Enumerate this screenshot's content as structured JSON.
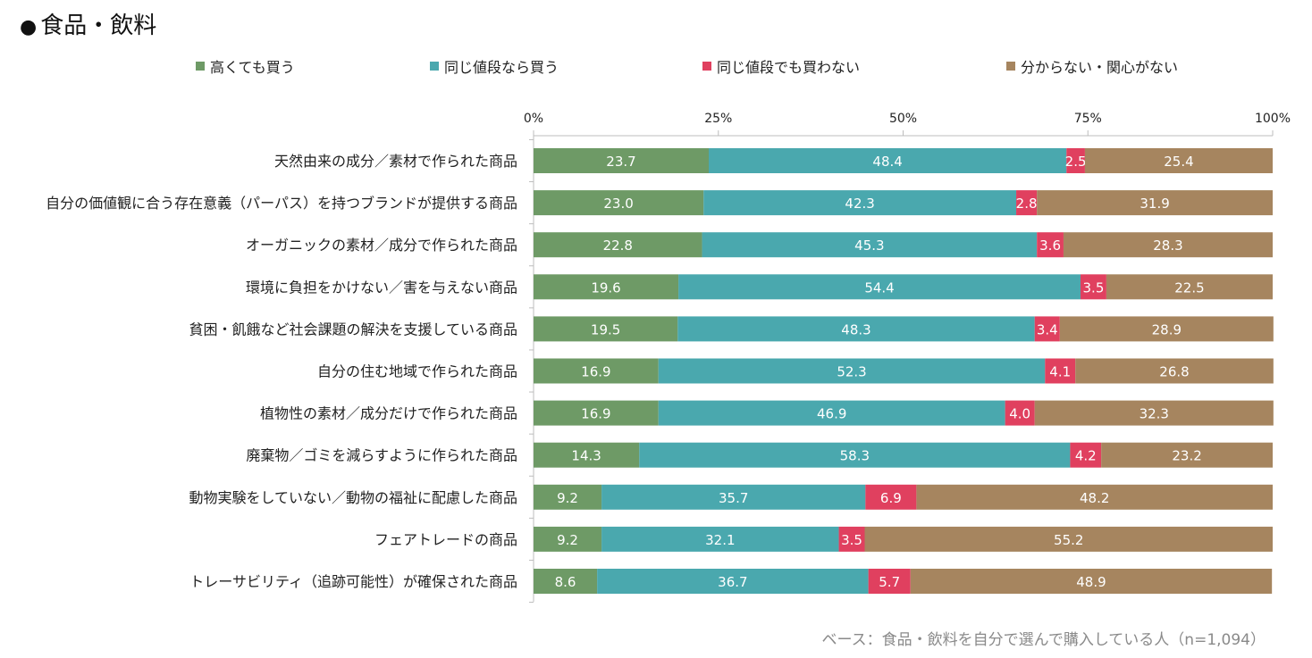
{
  "title": "食品・飲料",
  "bullet": "●",
  "footer": "ベース：食品・飲料を自分で選んで購入している人（n=1,094）",
  "colors": {
    "s1": "#6e9a66",
    "s2": "#4aa8ae",
    "s3": "#e0405f",
    "s4": "#a6855f",
    "axis": "#bdbdbd",
    "label_light": "#ffffff"
  },
  "chart_data": {
    "type": "bar",
    "orientation": "horizontal",
    "stacked": true,
    "xlim": [
      0,
      100
    ],
    "xticks": [
      "0%",
      "25%",
      "50%",
      "75%",
      "100%"
    ],
    "xtick_values": [
      0,
      25,
      50,
      75,
      100
    ],
    "legend_position": "top",
    "categories": [
      "天然由来の成分／素材で作られた商品",
      "自分の価値観に合う存在意義（パーパス）を持つブランドが提供する商品",
      "オーガニックの素材／成分で作られた商品",
      "環境に負担をかけない／害を与えない商品",
      "貧困・飢餓など社会課題の解決を支援している商品",
      "自分の住む地域で作られた商品",
      "植物性の素材／成分だけで作られた商品",
      "廃棄物／ゴミを減らすように作られた商品",
      "動物実験をしていない／動物の福祉に配慮した商品",
      "フェアトレードの商品",
      "トレーサビリティ（追跡可能性）が確保された商品"
    ],
    "series": [
      {
        "name": "高くても買う",
        "values": [
          23.7,
          23.0,
          22.8,
          19.6,
          19.5,
          16.9,
          16.9,
          14.3,
          9.2,
          9.2,
          8.6
        ]
      },
      {
        "name": "同じ値段なら買う",
        "values": [
          48.4,
          42.3,
          45.3,
          54.4,
          48.3,
          52.3,
          46.9,
          58.3,
          35.7,
          32.1,
          36.7
        ]
      },
      {
        "name": "同じ値段でも買わない",
        "values": [
          2.5,
          2.8,
          3.6,
          3.5,
          3.4,
          4.1,
          4.0,
          4.2,
          6.9,
          3.5,
          5.7
        ]
      },
      {
        "name": "分からない・関心がない",
        "values": [
          25.4,
          31.9,
          28.3,
          22.5,
          28.9,
          26.8,
          32.3,
          23.2,
          48.2,
          55.2,
          48.9
        ]
      }
    ]
  }
}
